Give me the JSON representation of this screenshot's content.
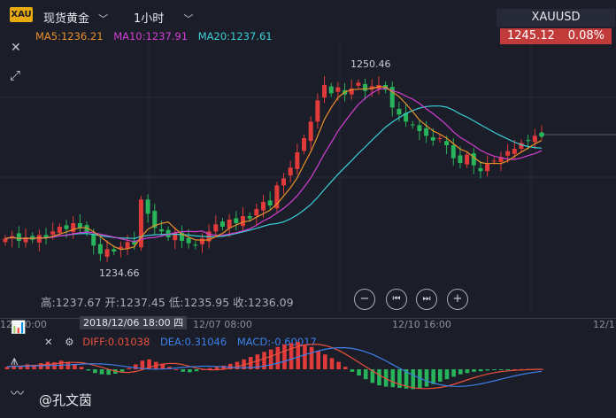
{
  "header": {
    "logo_text": "XAU",
    "symbol_label": "现货黄金",
    "period_label": "1小时",
    "chevron": "﹀"
  },
  "ticker": {
    "code": "XAUUSD",
    "price": "1245.12",
    "change": "0.08%"
  },
  "ma": {
    "ma5": "MA5:1236.21",
    "ma10": "MA10:1237.91",
    "ma20": "MA20:1237.61"
  },
  "price_labels": {
    "high": "1250.46",
    "low": "1234.66"
  },
  "ohlc_readout": "高:1237.67 开:1237.45 低:1235.95 收:1236.09",
  "controls": {
    "zoom_out": "−",
    "prev": "⏮",
    "next": "⏭",
    "zoom_in": "+"
  },
  "x_axis": {
    "labels": [
      "12/0 0:00",
      "12/07 08:00",
      "12/10 16:00",
      "12/1"
    ],
    "selected_date": "2018/12/06 18:00 四"
  },
  "macd": {
    "diff": "DIFF:0.01038",
    "dea": "DEA:0.31046",
    "macd": "MACD:-0.60017"
  },
  "watermark": "@孔文茵",
  "colors": {
    "background": "#1b1e29",
    "up": "#e03a3a",
    "down": "#27b45a",
    "ma5": "#e8902a",
    "ma10": "#d43fd4",
    "ma20": "#3ccfd6",
    "diff": "#e8503c",
    "dea": "#3c7fe8",
    "price_box": "#c23b3b"
  },
  "chart_data": {
    "type": "candlestick",
    "series": [
      {
        "name": "MA5",
        "values": []
      },
      {
        "name": "MA10",
        "values": []
      },
      {
        "name": "MA20",
        "values": []
      }
    ],
    "price_close": [
      1236.3,
      1236.5,
      1236.1,
      1236.4,
      1236.2,
      1236.6,
      1236.4,
      1236.9,
      1237.3,
      1237.1,
      1237.6,
      1237.2,
      1236.8,
      1235.7,
      1235.0,
      1235.4,
      1235.2,
      1235.6,
      1236.0,
      1235.8,
      1239.6,
      1238.4,
      1237.2,
      1236.9,
      1236.4,
      1236.8,
      1236.1,
      1235.9,
      1235.7,
      1236.3,
      1236.9,
      1237.5,
      1237.3,
      1237.9,
      1237.6,
      1238.2,
      1238.0,
      1238.8,
      1239.4,
      1239.1,
      1240.8,
      1241.4,
      1242.3,
      1243.6,
      1244.8,
      1246.2,
      1248.0,
      1249.3,
      1248.6,
      1249.1,
      1248.5,
      1249.0,
      1249.5,
      1248.8,
      1249.2,
      1249.3,
      1248.9,
      1247.4,
      1246.8,
      1246.2,
      1245.9,
      1245.4,
      1245.0,
      1244.6,
      1244.8,
      1244.2,
      1243.1,
      1242.7,
      1243.4,
      1242.5,
      1242.0,
      1242.6,
      1242.9,
      1243.2,
      1243.7,
      1243.9,
      1244.4,
      1244.6,
      1245.0,
      1245.12
    ],
    "macd_values": [
      0.1,
      0.15,
      0.12,
      0.2,
      0.18,
      0.25,
      0.3,
      0.28,
      0.35,
      0.3,
      0.2,
      0.1,
      -0.05,
      -0.15,
      -0.2,
      -0.22,
      -0.18,
      -0.1,
      0.05,
      0.2,
      0.35,
      0.4,
      0.3,
      0.2,
      0.1,
      0.0,
      -0.1,
      -0.12,
      -0.08,
      0.0,
      0.05,
      0.1,
      0.15,
      0.22,
      0.3,
      0.4,
      0.5,
      0.6,
      0.7,
      0.8,
      0.9,
      1.0,
      1.05,
      1.1,
      1.0,
      0.9,
      0.75,
      0.6,
      0.45,
      0.3,
      0.1,
      -0.1,
      -0.25,
      -0.4,
      -0.55,
      -0.65,
      -0.7,
      -0.72,
      -0.75,
      -0.78,
      -0.8,
      -0.75,
      -0.7,
      -0.6,
      -0.5,
      -0.4,
      -0.3,
      -0.2,
      -0.15,
      -0.1,
      -0.08,
      -0.05,
      -0.03,
      -0.02,
      -0.01,
      0.0,
      0.01,
      0.01,
      0.01,
      0.01
    ],
    "xlabel": "",
    "ylabel": ""
  }
}
